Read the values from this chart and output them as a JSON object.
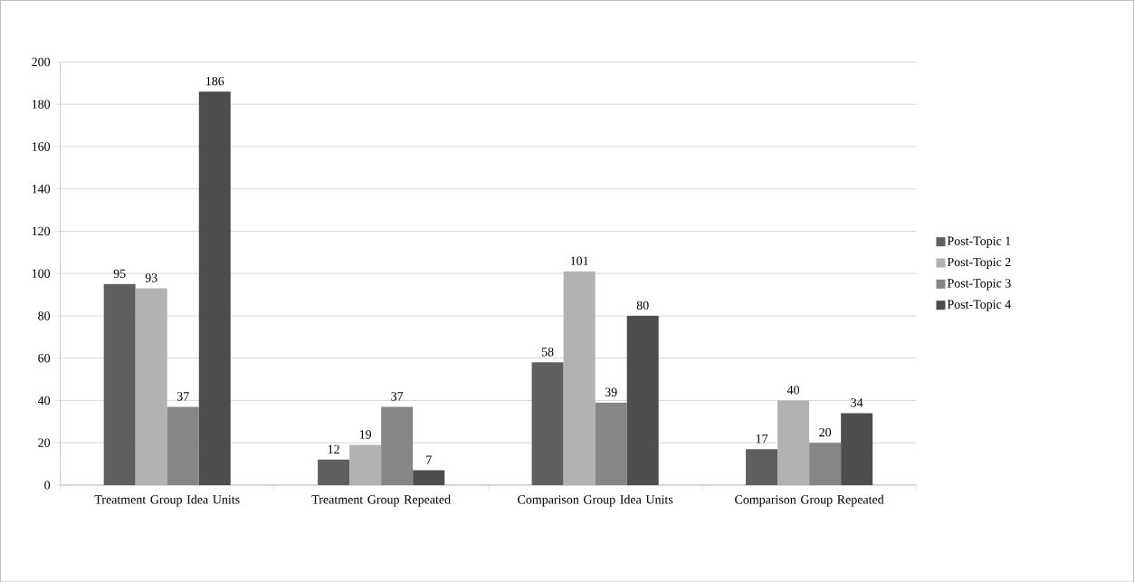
{
  "chart_data": {
    "type": "bar",
    "categories": [
      "Treatment Group Idea Units",
      "Treatment Group Repeated",
      "Comparison Group Idea Units",
      "Comparison Group Repeated"
    ],
    "series": [
      {
        "name": "Post-Topic 1",
        "color": "#5f5f5f",
        "values": [
          95,
          12,
          58,
          17
        ]
      },
      {
        "name": "Post-Topic 2",
        "color": "#b2b2b2",
        "values": [
          93,
          19,
          101,
          40
        ]
      },
      {
        "name": "Post-Topic 3",
        "color": "#868686",
        "values": [
          37,
          37,
          39,
          20
        ]
      },
      {
        "name": "Post-Topic 4",
        "color": "#4d4d4d",
        "values": [
          186,
          7,
          80,
          34
        ]
      }
    ],
    "ylim": [
      0,
      200
    ],
    "yticks": [
      0,
      20,
      40,
      60,
      80,
      100,
      120,
      140,
      160,
      180,
      200
    ],
    "grid": "y",
    "legend": "right",
    "data_labels": true
  }
}
